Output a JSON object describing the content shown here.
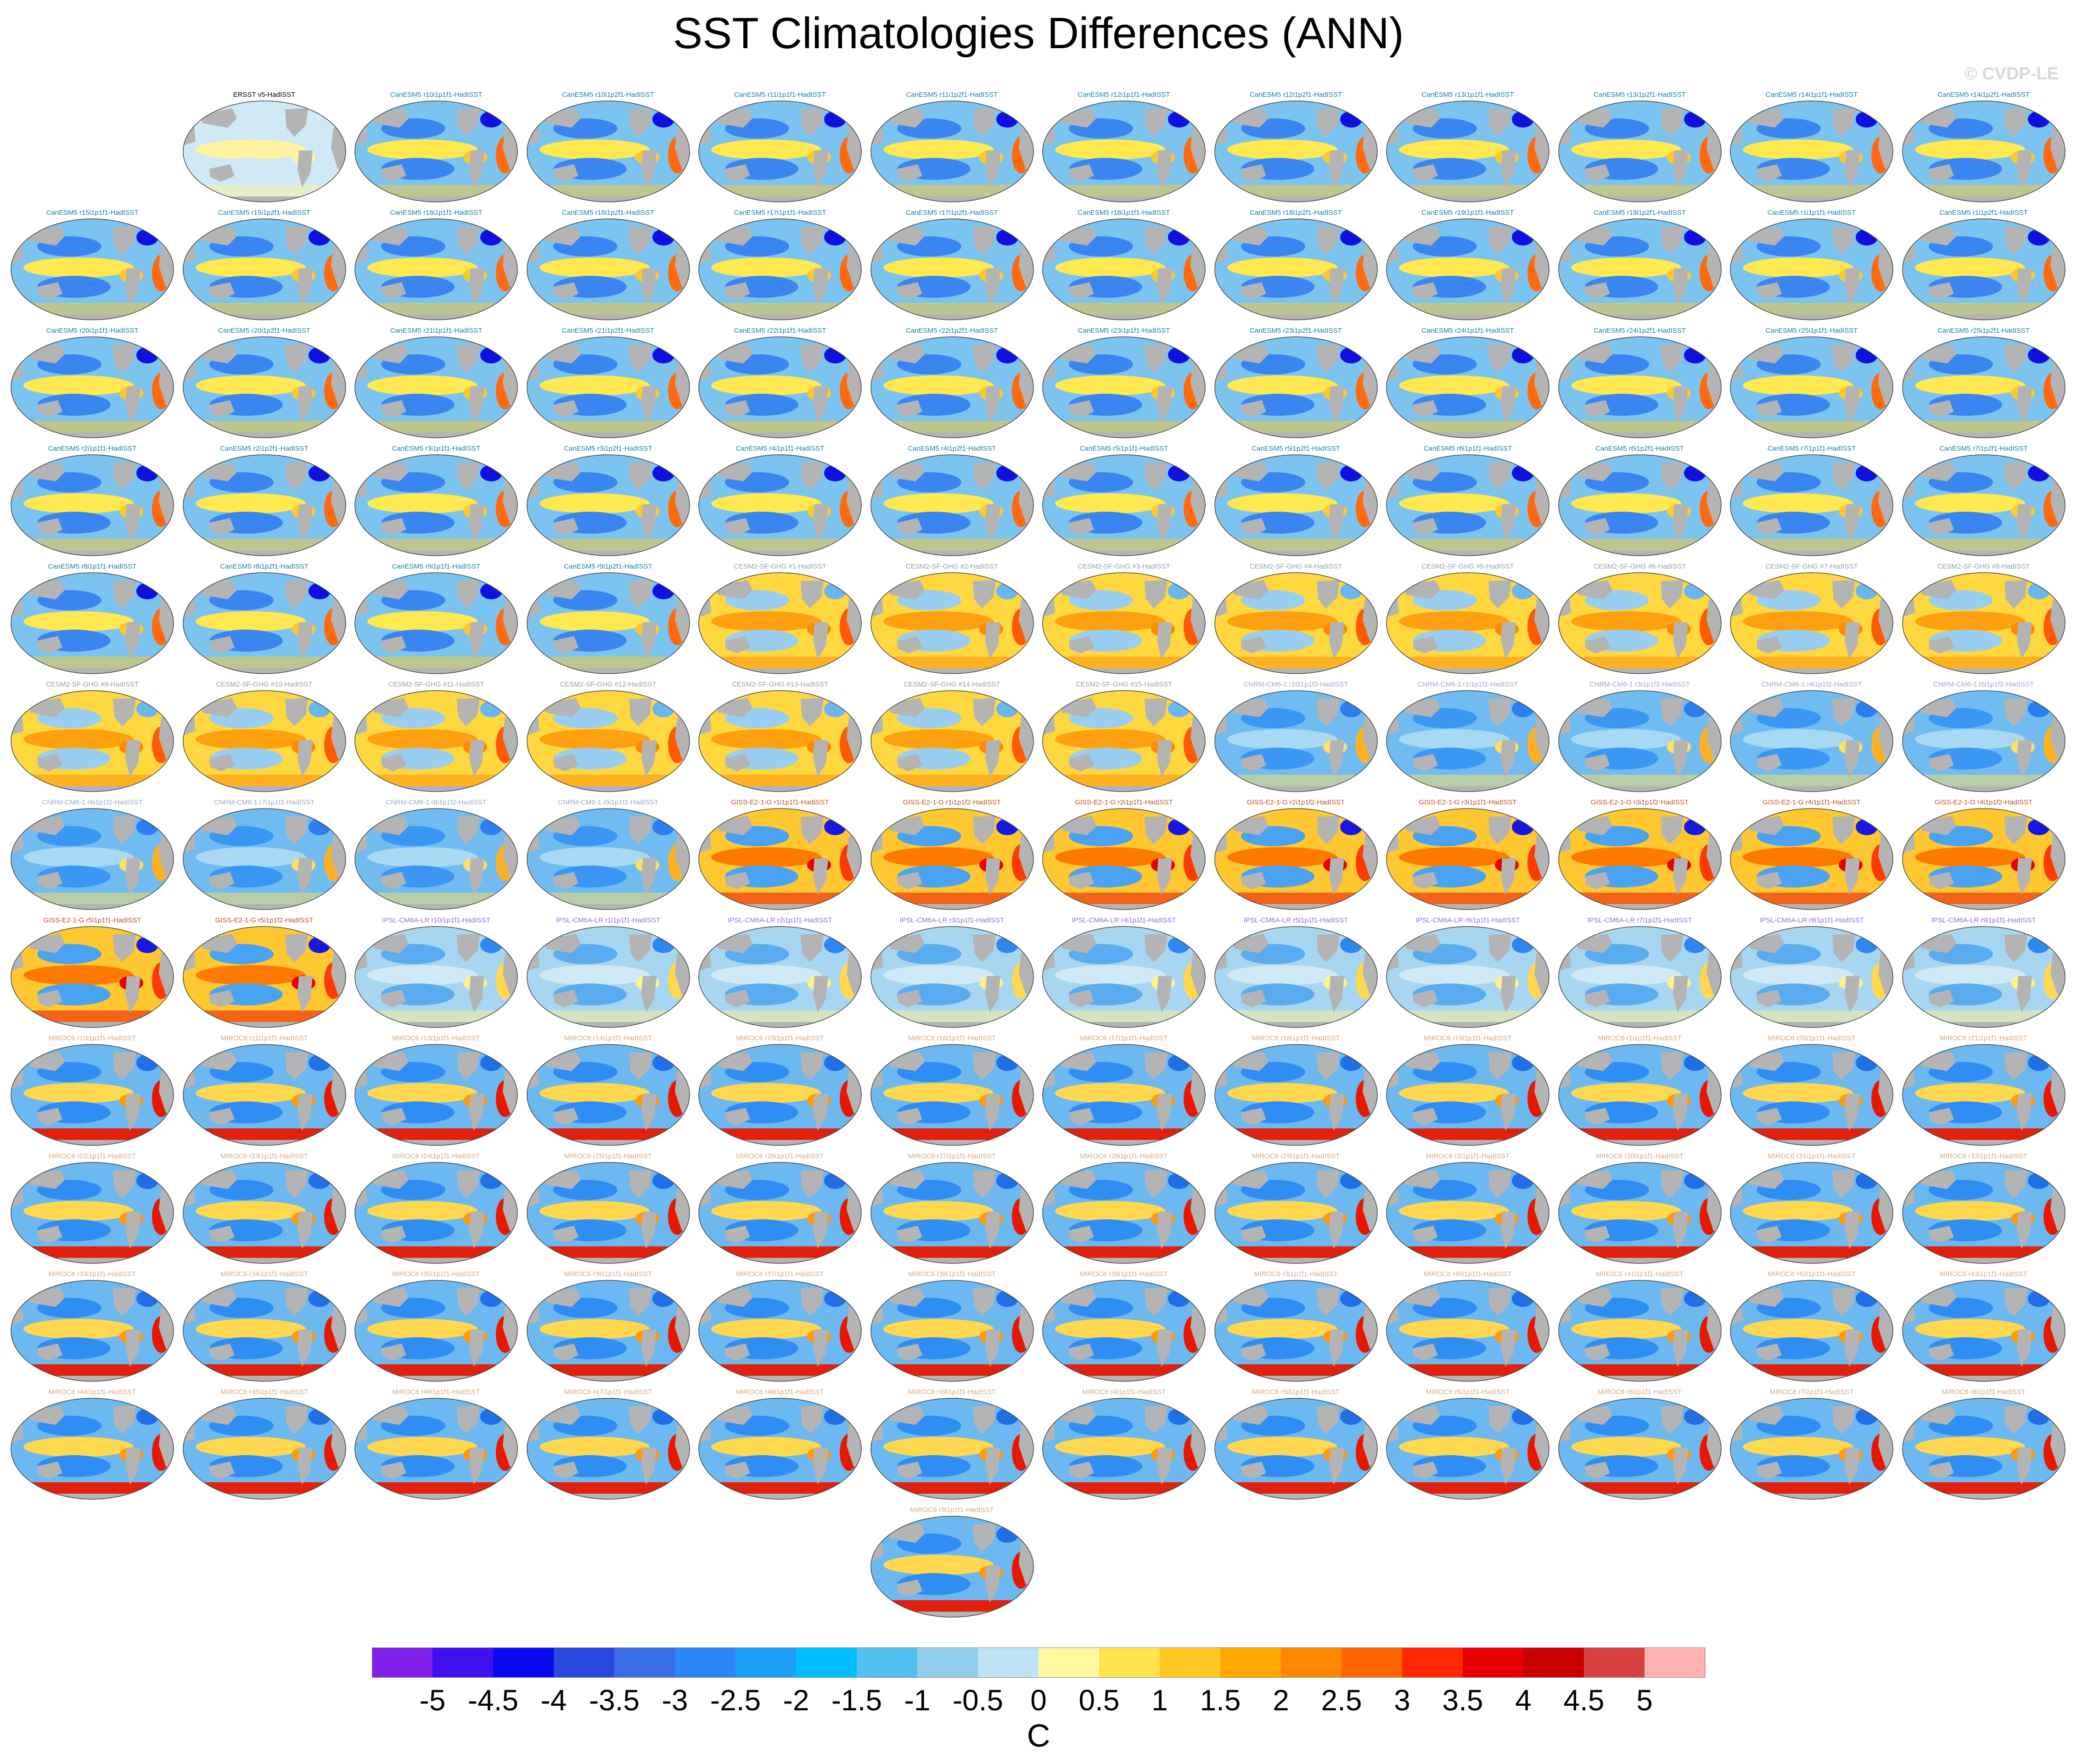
{
  "title": "SST Climatologies Differences (ANN)",
  "watermark": "© CVDP-LE",
  "colors": {
    "canesm5_label": "#1a7fa0",
    "cesm2_label": "#8aa0b4",
    "cnrm_label": "#9aa8c4",
    "giss_label": "#c0502a",
    "ipsl_label": "#8a70d8",
    "miroc_label": "#d8a880",
    "obs_label": "#000000",
    "land": "#b4b4b4",
    "ocean_outline": "#444444"
  },
  "panels": [
    {
      "label": "ERSST v5-HadISST",
      "group": "obs"
    },
    {
      "label": "CanESM5 r10i1p1f1-HadISST",
      "group": "canesm5"
    },
    {
      "label": "CanESM5 r10i1p2f1-HadISST",
      "group": "canesm5"
    },
    {
      "label": "CanESM5 r11i1p1f1-HadISST",
      "group": "canesm5"
    },
    {
      "label": "CanESM5 r11i1p2f1-HadISST",
      "group": "canesm5"
    },
    {
      "label": "CanESM5 r12i1p1f1-HadISST",
      "group": "canesm5"
    },
    {
      "label": "CanESM5 r12i1p2f1-HadISST",
      "group": "canesm5"
    },
    {
      "label": "CanESM5 r13i1p1f1-HadISST",
      "group": "canesm5"
    },
    {
      "label": "CanESM5 r13i1p2f1-HadISST",
      "group": "canesm5"
    },
    {
      "label": "CanESM5 r14i1p1f1-HadISST",
      "group": "canesm5"
    },
    {
      "label": "CanESM5 r14i1p2f1-HadISST",
      "group": "canesm5"
    },
    {
      "label": "CanESM5 r15i1p1f1-HadISST",
      "group": "canesm5"
    },
    {
      "label": "CanESM5 r15i1p2f1-HadISST",
      "group": "canesm5"
    },
    {
      "label": "CanESM5 r16i1p1f1-HadISST",
      "group": "canesm5"
    },
    {
      "label": "CanESM5 r16i1p2f1-HadISST",
      "group": "canesm5"
    },
    {
      "label": "CanESM5 r17i1p1f1-HadISST",
      "group": "canesm5"
    },
    {
      "label": "CanESM5 r17i1p2f1-HadISST",
      "group": "canesm5"
    },
    {
      "label": "CanESM5 r18i1p1f1-HadISST",
      "group": "canesm5"
    },
    {
      "label": "CanESM5 r18i1p2f1-HadISST",
      "group": "canesm5"
    },
    {
      "label": "CanESM5 r19i1p1f1-HadISST",
      "group": "canesm5"
    },
    {
      "label": "CanESM5 r19i1p2f1-HadISST",
      "group": "canesm5"
    },
    {
      "label": "CanESM5 r1i1p1f1-HadISST",
      "group": "canesm5"
    },
    {
      "label": "CanESM5 r1i1p2f1-HadISST",
      "group": "canesm5"
    },
    {
      "label": "CanESM5 r20i1p1f1-HadISST",
      "group": "canesm5"
    },
    {
      "label": "CanESM5 r20i1p2f1-HadISST",
      "group": "canesm5"
    },
    {
      "label": "CanESM5 r21i1p1f1-HadISST",
      "group": "canesm5"
    },
    {
      "label": "CanESM5 r21i1p2f1-HadISST",
      "group": "canesm5"
    },
    {
      "label": "CanESM5 r22i1p1f1-HadISST",
      "group": "canesm5"
    },
    {
      "label": "CanESM5 r22i1p2f1-HadISST",
      "group": "canesm5"
    },
    {
      "label": "CanESM5 r23i1p1f1-HadISST",
      "group": "canesm5"
    },
    {
      "label": "CanESM5 r23i1p2f1-HadISST",
      "group": "canesm5"
    },
    {
      "label": "CanESM5 r24i1p1f1-HadISST",
      "group": "canesm5"
    },
    {
      "label": "CanESM5 r24i1p2f1-HadISST",
      "group": "canesm5"
    },
    {
      "label": "CanESM5 r25i1p1f1-HadISST",
      "group": "canesm5"
    },
    {
      "label": "CanESM5 r25i1p2f1-HadISST",
      "group": "canesm5"
    },
    {
      "label": "CanESM5 r2i1p1f1-HadISST",
      "group": "canesm5"
    },
    {
      "label": "CanESM5 r2i1p2f1-HadISST",
      "group": "canesm5"
    },
    {
      "label": "CanESM5 r3i1p1f1-HadISST",
      "group": "canesm5"
    },
    {
      "label": "CanESM5 r3i1p2f1-HadISST",
      "group": "canesm5"
    },
    {
      "label": "CanESM5 r4i1p1f1-HadISST",
      "group": "canesm5"
    },
    {
      "label": "CanESM5 r4i1p2f1-HadISST",
      "group": "canesm5"
    },
    {
      "label": "CanESM5 r5i1p1f1-HadISST",
      "group": "canesm5"
    },
    {
      "label": "CanESM5 r5i1p2f1-HadISST",
      "group": "canesm5"
    },
    {
      "label": "CanESM5 r6i1p1f1-HadISST",
      "group": "canesm5"
    },
    {
      "label": "CanESM5 r6i1p2f1-HadISST",
      "group": "canesm5"
    },
    {
      "label": "CanESM5 r7i1p1f1-HadISST",
      "group": "canesm5"
    },
    {
      "label": "CanESM5 r7i1p2f1-HadISST",
      "group": "canesm5"
    },
    {
      "label": "CanESM5 r8i1p1f1-HadISST",
      "group": "canesm5"
    },
    {
      "label": "CanESM5 r8i1p2f1-HadISST",
      "group": "canesm5"
    },
    {
      "label": "CanESM5 r9i1p1f1-HadISST",
      "group": "canesm5"
    },
    {
      "label": "CanESM5 r9i1p2f1-HadISST",
      "group": "canesm5"
    },
    {
      "label": "CESM2-SF-GHG #1-HadISST",
      "group": "cesm2"
    },
    {
      "label": "CESM2-SF-GHG #2-HadISST",
      "group": "cesm2"
    },
    {
      "label": "CESM2-SF-GHG #3-HadISST",
      "group": "cesm2"
    },
    {
      "label": "CESM2-SF-GHG #4-HadISST",
      "group": "cesm2"
    },
    {
      "label": "CESM2-SF-GHG #5-HadISST",
      "group": "cesm2"
    },
    {
      "label": "CESM2-SF-GHG #6-HadISST",
      "group": "cesm2"
    },
    {
      "label": "CESM2-SF-GHG #7-HadISST",
      "group": "cesm2"
    },
    {
      "label": "CESM2-SF-GHG #8-HadISST",
      "group": "cesm2"
    },
    {
      "label": "CESM2-SF-GHG #9-HadISST",
      "group": "cesm2"
    },
    {
      "label": "CESM2-SF-GHG #10-HadISST",
      "group": "cesm2"
    },
    {
      "label": "CESM2-SF-GHG #11-HadISST",
      "group": "cesm2"
    },
    {
      "label": "CESM2-SF-GHG #12-HadISST",
      "group": "cesm2"
    },
    {
      "label": "CESM2-SF-GHG #13-HadISST",
      "group": "cesm2"
    },
    {
      "label": "CESM2-SF-GHG #14-HadISST",
      "group": "cesm2"
    },
    {
      "label": "CESM2-SF-GHG #15-HadISST",
      "group": "cesm2"
    },
    {
      "label": "CNRM-CM6-1 r10i1p1f2-HadISST",
      "group": "cnrm"
    },
    {
      "label": "CNRM-CM6-1 r1i1p1f2-HadISST",
      "group": "cnrm"
    },
    {
      "label": "CNRM-CM6-1 r3i1p1f2-HadISST",
      "group": "cnrm"
    },
    {
      "label": "CNRM-CM6-1 r4i1p1f2-HadISST",
      "group": "cnrm"
    },
    {
      "label": "CNRM-CM6-1 r5i1p1f2-HadISST",
      "group": "cnrm"
    },
    {
      "label": "CNRM-CM6-1 r6i1p1f2-HadISST",
      "group": "cnrm"
    },
    {
      "label": "CNRM-CM6-1 r7i1p1f2-HadISST",
      "group": "cnrm"
    },
    {
      "label": "CNRM-CM6-1 r8i1p1f2-HadISST",
      "group": "cnrm"
    },
    {
      "label": "CNRM-CM6-1 r9i1p1f2-HadISST",
      "group": "cnrm"
    },
    {
      "label": "GISS-E2-1-G r1i1p1f1-HadISST",
      "group": "giss"
    },
    {
      "label": "GISS-E2-1-G r1i1p1f2-HadISST",
      "group": "giss"
    },
    {
      "label": "GISS-E2-1-G r2i1p1f1-HadISST",
      "group": "giss"
    },
    {
      "label": "GISS-E2-1-G r2i1p1f2-HadISST",
      "group": "giss"
    },
    {
      "label": "GISS-E2-1-G r3i1p1f1-HadISST",
      "group": "giss"
    },
    {
      "label": "GISS-E2-1-G r3i1p1f2-HadISST",
      "group": "giss"
    },
    {
      "label": "GISS-E2-1-G r4i1p1f1-HadISST",
      "group": "giss"
    },
    {
      "label": "GISS-E2-1-G r4i1p1f2-HadISST",
      "group": "giss"
    },
    {
      "label": "GISS-E2-1-G r5i1p1f1-HadISST",
      "group": "giss"
    },
    {
      "label": "GISS-E2-1-G r5i1p1f2-HadISST",
      "group": "giss"
    },
    {
      "label": "IPSL-CM6A-LR r10i1p1f1-HadISST",
      "group": "ipsl"
    },
    {
      "label": "IPSL-CM6A-LR r1i1p1f1-HadISST",
      "group": "ipsl"
    },
    {
      "label": "IPSL-CM6A-LR r2i1p1f1-HadISST",
      "group": "ipsl"
    },
    {
      "label": "IPSL-CM6A-LR r3i1p1f1-HadISST",
      "group": "ipsl"
    },
    {
      "label": "IPSL-CM6A-LR r4i1p1f1-HadISST",
      "group": "ipsl"
    },
    {
      "label": "IPSL-CM6A-LR r5i1p1f1-HadISST",
      "group": "ipsl"
    },
    {
      "label": "IPSL-CM6A-LR r6i1p1f1-HadISST",
      "group": "ipsl"
    },
    {
      "label": "IPSL-CM6A-LR r7i1p1f1-HadISST",
      "group": "ipsl"
    },
    {
      "label": "IPSL-CM6A-LR r8i1p1f1-HadISST",
      "group": "ipsl"
    },
    {
      "label": "IPSL-CM6A-LR r9i1p1f1-HadISST",
      "group": "ipsl"
    },
    {
      "label": "MIROC6 r10i1p1f1-HadISST",
      "group": "miroc"
    },
    {
      "label": "MIROC6 r11i1p1f1-HadISST",
      "group": "miroc"
    },
    {
      "label": "MIROC6 r13i1p1f1-HadISST",
      "group": "miroc"
    },
    {
      "label": "MIROC6 r14i1p1f1-HadISST",
      "group": "miroc"
    },
    {
      "label": "MIROC6 r15i1p1f1-HadISST",
      "group": "miroc"
    },
    {
      "label": "MIROC6 r16i1p1f1-HadISST",
      "group": "miroc"
    },
    {
      "label": "MIROC6 r17i1p1f1-HadISST",
      "group": "miroc"
    },
    {
      "label": "MIROC6 r18i1p1f1-HadISST",
      "group": "miroc"
    },
    {
      "label": "MIROC6 r19i1p1f1-HadISST",
      "group": "miroc"
    },
    {
      "label": "MIROC6 r1i1p1f1-HadISST",
      "group": "miroc"
    },
    {
      "label": "MIROC6 r20i1p1f1-HadISST",
      "group": "miroc"
    },
    {
      "label": "MIROC6 r21i1p1f1-HadISST",
      "group": "miroc"
    },
    {
      "label": "MIROC6 r22i1p1f1-HadISST",
      "group": "miroc"
    },
    {
      "label": "MIROC6 r23i1p1f1-HadISST",
      "group": "miroc"
    },
    {
      "label": "MIROC6 r24i1p1f1-HadISST",
      "group": "miroc"
    },
    {
      "label": "MIROC6 r25i1p1f1-HadISST",
      "group": "miroc"
    },
    {
      "label": "MIROC6 r26i1p1f1-HadISST",
      "group": "miroc"
    },
    {
      "label": "MIROC6 r27i1p1f1-HadISST",
      "group": "miroc"
    },
    {
      "label": "MIROC6 r28i1p1f1-HadISST",
      "group": "miroc"
    },
    {
      "label": "MIROC6 r29i1p1f1-HadISST",
      "group": "miroc"
    },
    {
      "label": "MIROC6 r2i1p1f1-HadISST",
      "group": "miroc"
    },
    {
      "label": "MIROC6 r30i1p1f1-HadISST",
      "group": "miroc"
    },
    {
      "label": "MIROC6 r31i1p1f1-HadISST",
      "group": "miroc"
    },
    {
      "label": "MIROC6 r32i1p1f1-HadISST",
      "group": "miroc"
    },
    {
      "label": "MIROC6 r33i1p1f1-HadISST",
      "group": "miroc"
    },
    {
      "label": "MIROC6 r34i1p1f1-HadISST",
      "group": "miroc"
    },
    {
      "label": "MIROC6 r35i1p1f1-HadISST",
      "group": "miroc"
    },
    {
      "label": "MIROC6 r36i1p1f1-HadISST",
      "group": "miroc"
    },
    {
      "label": "MIROC6 r37i1p1f1-HadISST",
      "group": "miroc"
    },
    {
      "label": "MIROC6 r38i1p1f1-HadISST",
      "group": "miroc"
    },
    {
      "label": "MIROC6 r39i1p1f1-HadISST",
      "group": "miroc"
    },
    {
      "label": "MIROC6 r3i1p1f1-HadISST",
      "group": "miroc"
    },
    {
      "label": "MIROC6 r40i1p1f1-HadISST",
      "group": "miroc"
    },
    {
      "label": "MIROC6 r41i1p1f1-HadISST",
      "group": "miroc"
    },
    {
      "label": "MIROC6 r42i1p1f1-HadISST",
      "group": "miroc"
    },
    {
      "label": "MIROC6 r43i1p1f1-HadISST",
      "group": "miroc"
    },
    {
      "label": "MIROC6 r44i1p1f1-HadISST",
      "group": "miroc"
    },
    {
      "label": "MIROC6 r45i1p1f1-HadISST",
      "group": "miroc"
    },
    {
      "label": "MIROC6 r46i1p1f1-HadISST",
      "group": "miroc"
    },
    {
      "label": "MIROC6 r47i1p1f1-HadISST",
      "group": "miroc"
    },
    {
      "label": "MIROC6 r48i1p1f1-HadISST",
      "group": "miroc"
    },
    {
      "label": "MIROC6 r49i1p1f1-HadISST",
      "group": "miroc"
    },
    {
      "label": "MIROC6 r4i1p1f1-HadISST",
      "group": "miroc"
    },
    {
      "label": "MIROC6 r50i1p1f1-HadISST",
      "group": "miroc"
    },
    {
      "label": "MIROC6 r5i1p1f1-HadISST",
      "group": "miroc"
    },
    {
      "label": "MIROC6 r6i1p1f1-HadISST",
      "group": "miroc"
    },
    {
      "label": "MIROC6 r7i1p1f1-HadISST",
      "group": "miroc"
    },
    {
      "label": "MIROC6 r8i1p1f1-HadISST",
      "group": "miroc"
    },
    {
      "label": "MIROC6 r9i1p1f1-HadISST",
      "group": "miroc"
    }
  ],
  "chart_data": {
    "type": "heatmap",
    "title": "SST Climatologies Differences (ANN)",
    "projection": "global map panels, one per ensemble member minus HadISST",
    "colorbar": {
      "unit": "C",
      "levels": [
        -5,
        -4.5,
        -4,
        -3.5,
        -3,
        -2.5,
        -2,
        -1.5,
        -1,
        -0.5,
        0,
        0.5,
        1,
        1.5,
        2,
        2.5,
        3,
        3.5,
        4,
        4.5,
        5
      ],
      "tick_labels": [
        "-5",
        "-4.5",
        "-4",
        "-3.5",
        "-3",
        "-2.5",
        "-2",
        "-1.5",
        "-1",
        "-0.5",
        "0",
        "0.5",
        "1",
        "1.5",
        "2",
        "2.5",
        "3",
        "3.5",
        "4",
        "4.5",
        "5"
      ],
      "colors": [
        "#8020e8",
        "#4010f0",
        "#0a0af0",
        "#2848e0",
        "#3a6ee6",
        "#2a86f4",
        "#1ea0fa",
        "#00beff",
        "#50c0f0",
        "#90cdec",
        "#bde3f5",
        "#fff8a0",
        "#ffe450",
        "#ffc820",
        "#ffa800",
        "#ff8800",
        "#ff6400",
        "#ff2800",
        "#e80000",
        "#c80000",
        "#d84040",
        "#ffb0b0"
      ]
    }
  }
}
